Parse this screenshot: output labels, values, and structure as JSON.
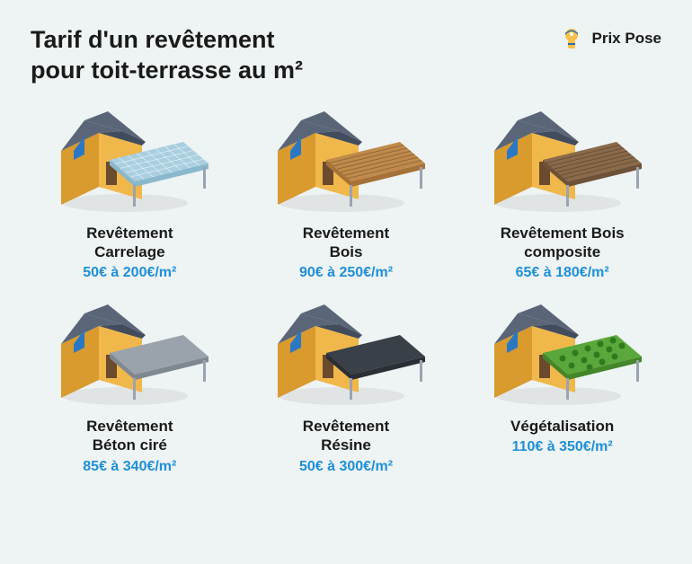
{
  "title_line1": "Tarif d'un revêtement",
  "title_line2": "pour toit-terrasse au m²",
  "brand": {
    "name": "Prix Pose"
  },
  "colors": {
    "background": "#eef3f4",
    "text": "#1a1a1a",
    "price": "#1e90d6",
    "house_wall": "#f0b84a",
    "house_wall_dark": "#d99a2e",
    "roof": "#5a6678",
    "roof_dark": "#424c5c",
    "window": "#2a78c4",
    "post": "#9aa3b0"
  },
  "items": [
    {
      "label": "Revêtement\nCarrelage",
      "price": "50€ à 200€/m²",
      "terrace_fill": "#a9cfe0",
      "terrace_side": "#8ab8cc",
      "grid": true,
      "planks": false,
      "green": false
    },
    {
      "label": "Revêtement\nBois",
      "price": "90€ à 250€/m²",
      "terrace_fill": "#c08a4a",
      "terrace_side": "#a67238",
      "grid": false,
      "planks": true,
      "green": false
    },
    {
      "label": "Revêtement Bois\ncomposite",
      "price": "65€ à 180€/m²",
      "terrace_fill": "#8a6a4a",
      "terrace_side": "#6e5238",
      "grid": false,
      "planks": true,
      "green": false
    },
    {
      "label": "Revêtement\nBéton ciré",
      "price": "85€ à 340€/m²",
      "terrace_fill": "#9aa3ab",
      "terrace_side": "#7f8890",
      "grid": false,
      "planks": false,
      "green": false
    },
    {
      "label": "Revêtement\nRésine",
      "price": "50€ à 300€/m²",
      "terrace_fill": "#3a4048",
      "terrace_side": "#2a2f36",
      "grid": false,
      "planks": false,
      "green": false
    },
    {
      "label": "Végétalisation",
      "price": "110€ à 350€/m²",
      "terrace_fill": "#5aa83c",
      "terrace_side": "#44862a",
      "grid": false,
      "planks": false,
      "green": true
    }
  ]
}
